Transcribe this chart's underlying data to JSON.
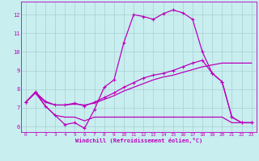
{
  "xlabel": "Windchill (Refroidissement éolien,°C)",
  "xlim": [
    -0.5,
    23.5
  ],
  "ylim": [
    5.7,
    12.7
  ],
  "yticks": [
    6,
    7,
    8,
    9,
    10,
    11,
    12
  ],
  "xticks": [
    0,
    1,
    2,
    3,
    4,
    5,
    6,
    7,
    8,
    9,
    10,
    11,
    12,
    13,
    14,
    15,
    16,
    17,
    18,
    19,
    20,
    21,
    22,
    23
  ],
  "bg_color": "#c8eef0",
  "grid_color": "#aacfcf",
  "line_color": "#bb00bb",
  "line1_y": [
    7.3,
    7.8,
    7.1,
    6.6,
    6.1,
    6.2,
    5.9,
    6.9,
    8.1,
    8.5,
    10.5,
    12.0,
    11.9,
    11.75,
    12.05,
    12.25,
    12.1,
    11.75,
    10.0,
    8.85,
    8.4,
    6.5,
    6.2,
    6.2
  ],
  "line2_y": [
    7.3,
    7.85,
    7.35,
    7.15,
    7.15,
    7.25,
    7.1,
    7.3,
    7.55,
    7.8,
    8.1,
    8.35,
    8.6,
    8.75,
    8.85,
    9.0,
    9.2,
    9.4,
    9.55,
    8.85,
    8.4,
    6.5,
    6.2,
    6.2
  ],
  "line3_y": [
    7.3,
    7.8,
    7.3,
    7.15,
    7.15,
    7.2,
    7.15,
    7.25,
    7.45,
    7.65,
    7.9,
    8.1,
    8.3,
    8.5,
    8.65,
    8.75,
    8.9,
    9.05,
    9.2,
    9.3,
    9.4,
    9.4,
    9.4,
    9.4
  ],
  "line4_y": [
    7.3,
    7.85,
    7.1,
    6.6,
    6.5,
    6.5,
    6.3,
    6.5,
    6.5,
    6.5,
    6.5,
    6.5,
    6.5,
    6.5,
    6.5,
    6.5,
    6.5,
    6.5,
    6.5,
    6.5,
    6.5,
    6.2,
    6.2,
    6.2
  ]
}
